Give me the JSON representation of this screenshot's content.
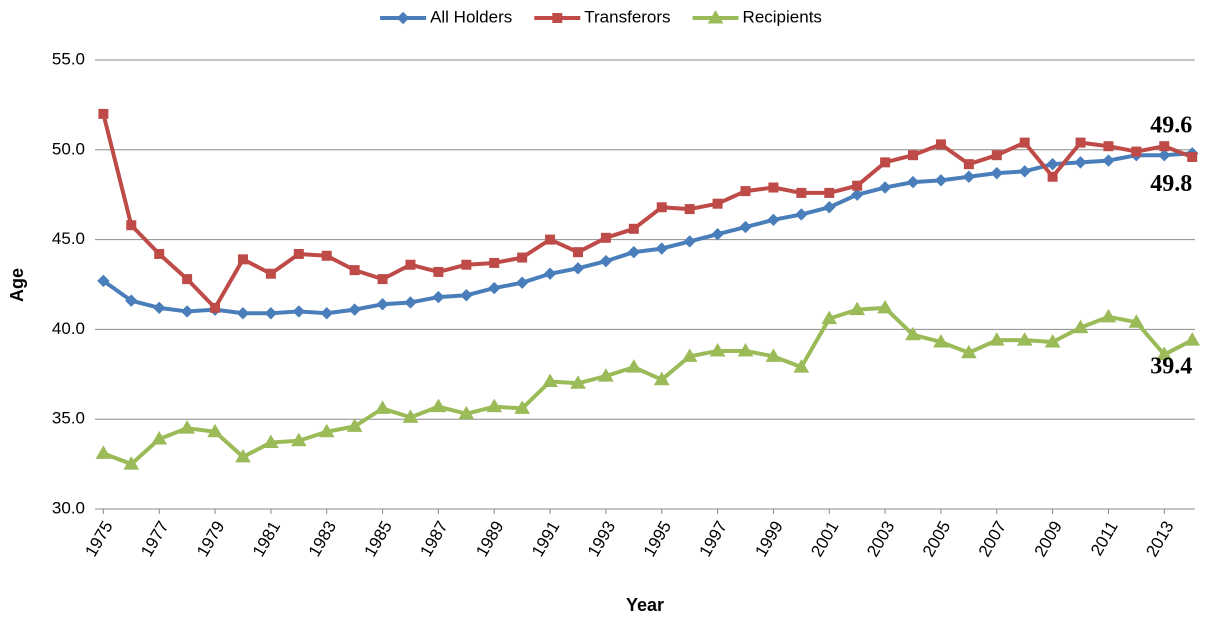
{
  "chart_data": {
    "type": "line",
    "x_label": "Year",
    "y_label": "Age",
    "x": [
      1975,
      1976,
      1977,
      1978,
      1979,
      1980,
      1981,
      1982,
      1983,
      1984,
      1985,
      1986,
      1987,
      1988,
      1989,
      1990,
      1991,
      1992,
      1993,
      1994,
      1995,
      1996,
      1997,
      1998,
      1999,
      2000,
      2001,
      2002,
      2003,
      2004,
      2005,
      2006,
      2007,
      2008,
      2009,
      2010,
      2011,
      2012,
      2013,
      2014
    ],
    "xlim": [
      1974.7,
      2014.1
    ],
    "xticks": [
      1975,
      1977,
      1979,
      1981,
      1983,
      1985,
      1987,
      1989,
      1991,
      1993,
      1995,
      1997,
      1999,
      2001,
      2003,
      2005,
      2007,
      2009,
      2011,
      2013
    ],
    "ylim": [
      30,
      55
    ],
    "yticks": [
      {
        "value": 30,
        "label": "30.0"
      },
      {
        "value": 35,
        "label": "35.0"
      },
      {
        "value": 40,
        "label": "40.0"
      },
      {
        "value": 45,
        "label": "45.0"
      },
      {
        "value": 50,
        "label": "50.0"
      },
      {
        "value": 55,
        "label": "55.0"
      }
    ],
    "grid": true,
    "legend": "top",
    "series": [
      {
        "name": "All Holders",
        "color": "#4a7ebb",
        "marker": "diamond",
        "label_color": "#2e75b6",
        "values": [
          42.7,
          41.6,
          41.2,
          41.0,
          41.1,
          40.9,
          40.9,
          41.0,
          40.9,
          41.1,
          41.4,
          41.5,
          41.8,
          41.9,
          42.3,
          42.6,
          43.1,
          43.4,
          43.8,
          44.3,
          44.5,
          44.9,
          45.3,
          45.7,
          46.1,
          46.4,
          46.8,
          47.5,
          47.9,
          48.2,
          48.3,
          48.5,
          48.7,
          48.8,
          49.2,
          49.3,
          49.4,
          49.7,
          49.7,
          49.8
        ]
      },
      {
        "name": "Transferors",
        "color": "#be4b48",
        "marker": "square",
        "label_color": "#c00000",
        "values": [
          52.0,
          45.8,
          44.2,
          42.8,
          41.2,
          43.9,
          43.1,
          44.2,
          44.1,
          43.3,
          42.8,
          43.6,
          43.2,
          43.6,
          43.7,
          44.0,
          45.0,
          44.3,
          45.1,
          45.6,
          46.8,
          46.7,
          47.0,
          47.7,
          47.9,
          47.6,
          47.6,
          48.0,
          49.3,
          49.7,
          50.3,
          49.2,
          49.7,
          50.4,
          48.5,
          50.4,
          50.2,
          49.9,
          50.2,
          49.6
        ]
      },
      {
        "name": "Recipients",
        "color": "#9bbb59",
        "marker": "triangle",
        "label_color": "#77933c",
        "values": [
          33.1,
          32.5,
          33.9,
          34.5,
          34.3,
          32.9,
          33.7,
          33.8,
          34.3,
          34.6,
          35.6,
          35.1,
          35.7,
          35.3,
          35.7,
          35.6,
          37.1,
          37.0,
          37.4,
          37.9,
          37.2,
          38.5,
          38.8,
          38.8,
          38.5,
          37.9,
          40.6,
          41.1,
          41.2,
          39.7,
          39.3,
          38.7,
          39.4,
          39.4,
          39.3,
          40.1,
          40.7,
          40.4,
          38.6,
          39.4
        ]
      }
    ]
  }
}
